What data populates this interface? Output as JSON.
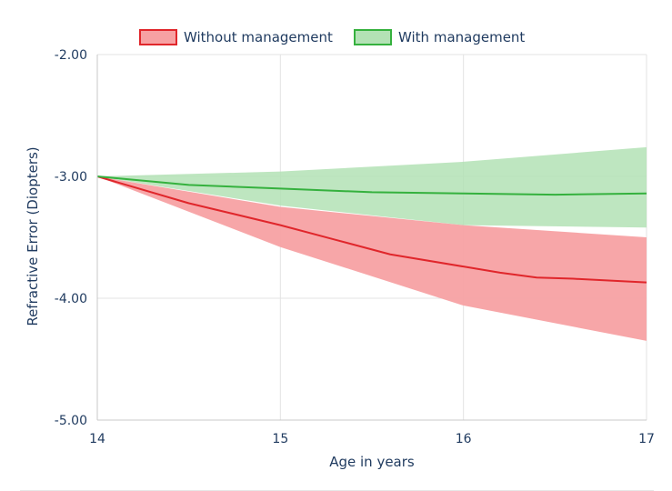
{
  "chart_data": {
    "type": "line",
    "xlabel": "Age in years",
    "ylabel": "Refractive Error (Diopters)",
    "x_ticks": [
      "14",
      "15",
      "16",
      "17"
    ],
    "y_ticks": [
      "-2.00",
      "-3.00",
      "-4.00",
      "-5.00"
    ],
    "xlim": [
      14,
      17
    ],
    "ylim": [
      -5,
      -2
    ],
    "grid": true,
    "legend_position": "top",
    "series": [
      {
        "name": "Without management",
        "line_color": "#e0262b",
        "fill_color": "#f7a1a3",
        "x": [
          14,
          14.5,
          15,
          15.3,
          15.6,
          16,
          16.2,
          16.4,
          16.6,
          17
        ],
        "y": [
          -3.0,
          -3.22,
          -3.4,
          -3.52,
          -3.64,
          -3.74,
          -3.79,
          -3.83,
          -3.84,
          -3.87
        ],
        "band": {
          "x": [
            14,
            15,
            16,
            17
          ],
          "upper": [
            -3.0,
            -3.25,
            -3.4,
            -3.5
          ],
          "lower": [
            -3.0,
            -3.58,
            -4.06,
            -4.35
          ]
        }
      },
      {
        "name": "With management",
        "line_color": "#35b13e",
        "fill_color": "#b3e2b5",
        "x": [
          14,
          14.5,
          15,
          15.5,
          16,
          16.5,
          17
        ],
        "y": [
          -3.0,
          -3.07,
          -3.1,
          -3.13,
          -3.14,
          -3.15,
          -3.14
        ],
        "band": {
          "x": [
            14,
            15,
            16,
            17
          ],
          "upper": [
            -3.0,
            -2.96,
            -2.88,
            -2.76
          ],
          "lower": [
            -3.0,
            -3.24,
            -3.4,
            -3.42
          ]
        }
      }
    ]
  }
}
